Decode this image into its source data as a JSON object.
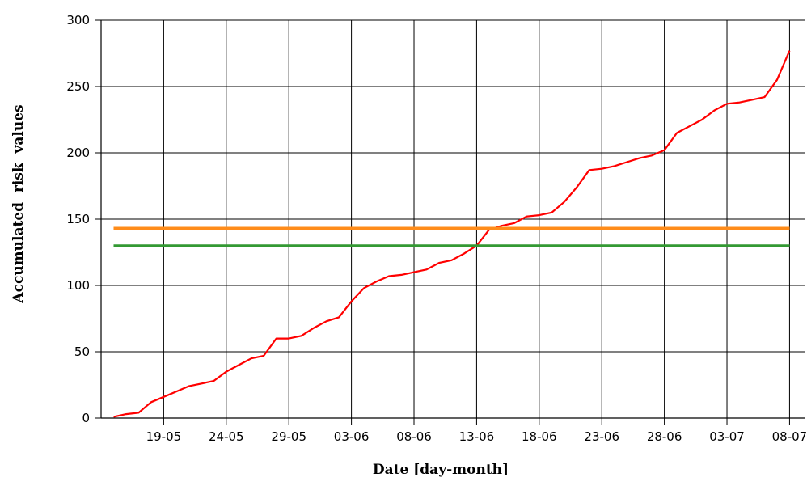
{
  "chart_data": {
    "type": "line",
    "xlabel": "Date [day-month]",
    "ylabel": "Accumulated  risk  values",
    "ylim": [
      0,
      300
    ],
    "y_ticks": [
      0,
      50,
      100,
      150,
      200,
      250,
      300
    ],
    "x_start": "14-05",
    "x_end": "08-07",
    "x_tick_labels": [
      "19-05",
      "24-05",
      "29-05",
      "03-06",
      "08-06",
      "13-06",
      "18-06",
      "23-06",
      "28-06",
      "03-07",
      "08-07"
    ],
    "grid": true,
    "series": [
      {
        "kind": "line",
        "color": "#ff0000",
        "points": [
          [
            "15-05",
            1
          ],
          [
            "16-05",
            3
          ],
          [
            "17-05",
            4
          ],
          [
            "18-05",
            12
          ],
          [
            "19-05",
            16
          ],
          [
            "20-05",
            20
          ],
          [
            "21-05",
            24
          ],
          [
            "22-05",
            26
          ],
          [
            "23-05",
            28
          ],
          [
            "24-05",
            35
          ],
          [
            "25-05",
            40
          ],
          [
            "26-05",
            45
          ],
          [
            "27-05",
            47
          ],
          [
            "28-05",
            60
          ],
          [
            "29-05",
            60
          ],
          [
            "30-05",
            62
          ],
          [
            "31-05",
            68
          ],
          [
            "01-06",
            73
          ],
          [
            "02-06",
            76
          ],
          [
            "03-06",
            88
          ],
          [
            "04-06",
            98
          ],
          [
            "05-06",
            103
          ],
          [
            "06-06",
            107
          ],
          [
            "07-06",
            108
          ],
          [
            "08-06",
            110
          ],
          [
            "09-06",
            112
          ],
          [
            "10-06",
            117
          ],
          [
            "11-06",
            119
          ],
          [
            "12-06",
            124
          ],
          [
            "13-06",
            130
          ],
          [
            "14-06",
            142
          ],
          [
            "15-06",
            145
          ],
          [
            "16-06",
            147
          ],
          [
            "17-06",
            152
          ],
          [
            "18-06",
            153
          ],
          [
            "19-06",
            155
          ],
          [
            "20-06",
            163
          ],
          [
            "21-06",
            174
          ],
          [
            "22-06",
            187
          ],
          [
            "23-06",
            188
          ],
          [
            "24-06",
            190
          ],
          [
            "25-06",
            193
          ],
          [
            "26-06",
            196
          ],
          [
            "27-06",
            198
          ],
          [
            "28-06",
            202
          ],
          [
            "29-06",
            215
          ],
          [
            "30-06",
            220
          ],
          [
            "01-07",
            225
          ],
          [
            "02-07",
            232
          ],
          [
            "03-07",
            237
          ],
          [
            "04-07",
            238
          ],
          [
            "05-07",
            240
          ],
          [
            "06-07",
            242
          ],
          [
            "07-07",
            255
          ],
          [
            "08-07",
            277
          ]
        ]
      },
      {
        "kind": "hline",
        "color": "#ff8c1a",
        "value": 143,
        "from": "15-05",
        "to": "08-07"
      },
      {
        "kind": "hline",
        "color": "#339933",
        "value": 130,
        "from": "15-05",
        "to": "08-07"
      }
    ]
  }
}
